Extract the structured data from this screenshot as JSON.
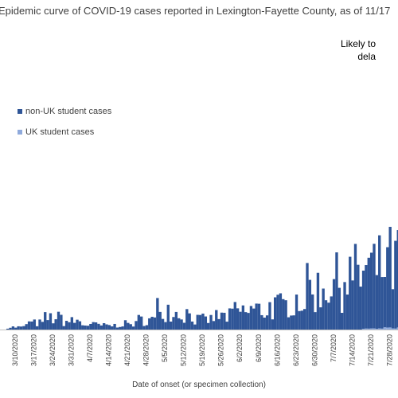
{
  "chart_data": {
    "type": "bar",
    "stacked": true,
    "title": "Epidemic curve of COVID-19 cases reported in Lexington-Fayette County, as of 11/17",
    "annotation_lines": [
      "Likely to",
      "dela"
    ],
    "xlabel": "Date of onset (or specimen collection)",
    "ylabel": "",
    "legend_placement": "upper-left",
    "grid": false,
    "x_tick_labels": [
      "3/10/2020",
      "3/17/2020",
      "3/24/2020",
      "3/31/2020",
      "4/7/2020",
      "4/14/2020",
      "4/21/2020",
      "4/28/2020",
      "5/5/2020",
      "5/12/2020",
      "5/19/2020",
      "5/26/2020",
      "6/2/2020",
      "6/9/2020",
      "6/16/2020",
      "6/23/2020",
      "6/30/2020",
      "7/7/2020",
      "7/14/2020",
      "7/21/2020",
      "7/28/2020",
      "8/4/2020",
      "8/11/2020",
      "8/18/2020",
      "8/25/2020",
      "9/1/2020",
      "9/8/2020",
      "9/15/2020",
      "9/22/2020",
      "9/29/2020",
      "10/6/2020",
      "10/13/2020"
    ],
    "weekly_values": {
      "categories": [
        "3/10",
        "3/17",
        "3/24",
        "3/31",
        "4/7",
        "4/14",
        "4/21",
        "4/28",
        "5/5",
        "5/12",
        "5/19",
        "5/26",
        "6/2",
        "6/9",
        "6/16",
        "6/23",
        "6/30",
        "7/7",
        "7/14",
        "7/21",
        "7/28",
        "8/4",
        "8/11",
        "8/18",
        "8/25",
        "9/1",
        "9/8",
        "9/15",
        "9/22",
        "9/29",
        "10/6",
        "10/13"
      ],
      "ylim": [
        0,
        220
      ]
    },
    "series": [
      {
        "name": "non-UK student cases",
        "color": "#2f5597",
        "values": [
          3,
          8,
          14,
          10,
          6,
          5,
          7,
          12,
          26,
          20,
          12,
          16,
          22,
          24,
          28,
          38,
          50,
          58,
          66,
          72,
          78,
          86,
          92,
          102,
          112,
          98,
          94,
          88,
          82,
          80,
          82,
          85
        ]
      },
      {
        "name": "UK student cases",
        "color": "#8faadc",
        "values": [
          0,
          0,
          0,
          0,
          0,
          0,
          0,
          0,
          0,
          0,
          0,
          0,
          0,
          0,
          0,
          0,
          0,
          0,
          0,
          1,
          2,
          4,
          10,
          28,
          55,
          62,
          42,
          22,
          12,
          8,
          6,
          5
        ]
      }
    ]
  }
}
